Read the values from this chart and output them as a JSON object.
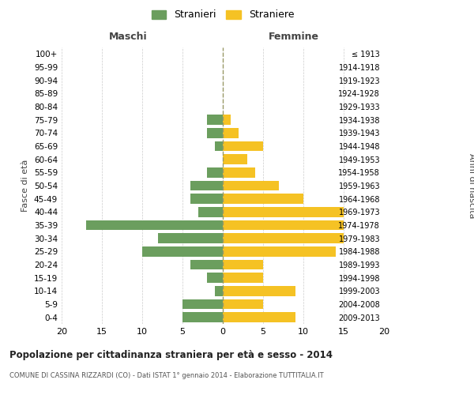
{
  "age_groups": [
    "100+",
    "95-99",
    "90-94",
    "85-89",
    "80-84",
    "75-79",
    "70-74",
    "65-69",
    "60-64",
    "55-59",
    "50-54",
    "45-49",
    "40-44",
    "35-39",
    "30-34",
    "25-29",
    "20-24",
    "15-19",
    "10-14",
    "5-9",
    "0-4"
  ],
  "birth_years": [
    "≤ 1913",
    "1914-1918",
    "1919-1923",
    "1924-1928",
    "1929-1933",
    "1934-1938",
    "1939-1943",
    "1944-1948",
    "1949-1953",
    "1954-1958",
    "1959-1963",
    "1964-1968",
    "1969-1973",
    "1974-1978",
    "1979-1983",
    "1984-1988",
    "1989-1993",
    "1994-1998",
    "1999-2003",
    "2004-2008",
    "2009-2013"
  ],
  "maschi": [
    0,
    0,
    0,
    0,
    0,
    2,
    2,
    1,
    0,
    2,
    4,
    4,
    3,
    17,
    8,
    10,
    4,
    2,
    1,
    5,
    5
  ],
  "femmine": [
    0,
    0,
    0,
    0,
    0,
    1,
    2,
    5,
    3,
    4,
    7,
    10,
    15,
    15,
    15,
    14,
    5,
    5,
    9,
    5,
    9
  ],
  "color_maschi": "#6b9e5e",
  "color_femmine": "#f5c224",
  "color_grid": "#cccccc",
  "color_dashed": "#999966",
  "title": "Popolazione per cittadinanza straniera per età e sesso - 2014",
  "subtitle": "COMUNE DI CASSINA RIZZARDI (CO) - Dati ISTAT 1° gennaio 2014 - Elaborazione TUTTITALIA.IT",
  "ylabel_left": "Fasce di età",
  "ylabel_right": "Anni di nascita",
  "xlabel_left": "Maschi",
  "xlabel_right": "Femmine",
  "legend_maschi": "Stranieri",
  "legend_femmine": "Straniere",
  "xlim": 20,
  "background_color": "#ffffff"
}
